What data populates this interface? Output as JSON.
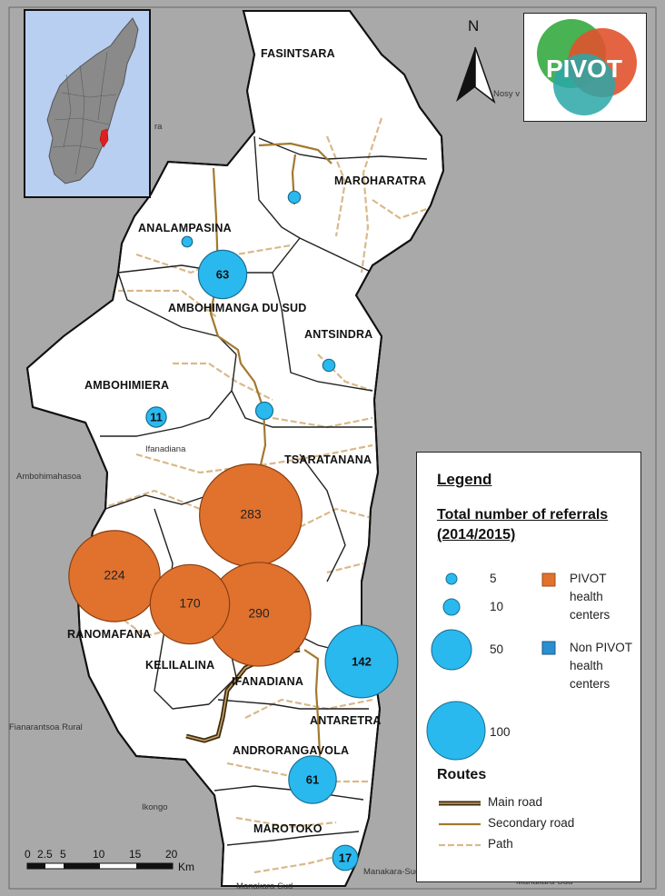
{
  "north_label": "N",
  "logo_text": "PIVOT",
  "communes": [
    "FASINTSARA",
    "MAROHARATRA",
    "ANALAMPASINA",
    "AMBOHIMANGA DU SUD",
    "ANTSINDRA",
    "AMBOHIMIERA",
    "TSARATANANA",
    "RANOMAFANA",
    "KELILALINA",
    "IFANADIANA",
    "ANTARETRA",
    "ANDRORANGAVOLA",
    "MAROTOKO"
  ],
  "places": [
    "Ifanadiana",
    "Ambohimahasoa",
    "Fianarantsoa Rural",
    "Ikongo",
    "Nosy v",
    "Manakara-Sud",
    "Manakara-Sud",
    "Manakara-Sud",
    "ra"
  ],
  "pivot_centers": [
    {
      "commune": "TSARATANANA",
      "referrals": 283
    },
    {
      "commune": "RANOMAFANA",
      "referrals": 224
    },
    {
      "commune": "KELILALINA",
      "referrals": 170
    },
    {
      "commune": "IFANADIANA",
      "referrals": 290
    }
  ],
  "non_pivot_centers": [
    {
      "commune": "AMBOHIMANGA DU SUD",
      "referrals": 63,
      "label": "63"
    },
    {
      "commune": "AMBOHIMIERA",
      "referrals": 11,
      "label": "11"
    },
    {
      "commune": "ANTARETRA",
      "referrals": 142,
      "label": "142"
    },
    {
      "commune": "ANDRORANGAVOLA",
      "referrals": 61,
      "label": "61"
    },
    {
      "commune": "MAROTOKO",
      "referrals": 17,
      "label": "17"
    },
    {
      "commune": "MAROHARATRA",
      "referrals": 4,
      "label": ""
    },
    {
      "commune": "ANALAMPASINA",
      "referrals": 3,
      "label": ""
    },
    {
      "commune": "ANTSINDRA",
      "referrals": 4,
      "label": ""
    },
    {
      "commune": "TSARATANANA",
      "referrals": 8,
      "label": ""
    }
  ],
  "legend": {
    "title": "Legend",
    "subtitle": "Total number of referrals (2014/2015)",
    "sizes": [
      "5",
      "10",
      "50",
      "100"
    ],
    "pivot_label": "PIVOT health centers",
    "non_pivot_label": "Non PIVOT health centers",
    "pivot_color": "#e0722e",
    "non_pivot_color": "#29b9ef",
    "routes_title": "Routes",
    "routes": [
      "Main road",
      "Secondary road",
      "Path"
    ]
  },
  "scalebar": {
    "ticks": [
      "0",
      "2.5",
      "5",
      "10",
      "15",
      "20"
    ],
    "unit": "Km"
  }
}
